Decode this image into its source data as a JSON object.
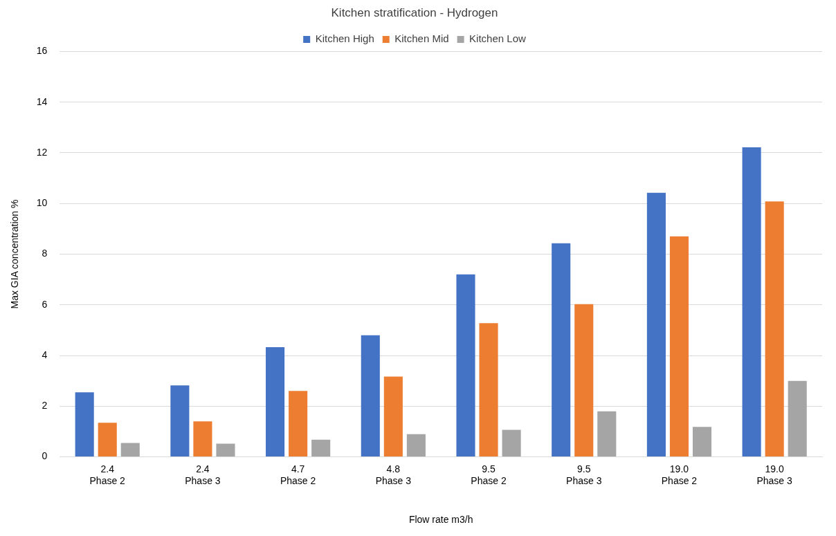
{
  "chart_data": {
    "type": "bar",
    "title": "Kitchen stratification - Hydrogen",
    "xlabel": "Flow rate m3/h",
    "ylabel": "Max GIA concentration %",
    "categories": [
      "2.4\nPhase 2",
      "2.4\nPhase 3",
      "4.7\nPhase 2",
      "4.8\nPhase 3",
      "9.5\nPhase 2",
      "9.5\nPhase 3",
      "19.0\nPhase 2",
      "19.0\nPhase 3"
    ],
    "series": [
      {
        "name": "Kitchen High",
        "color": "#4472c4",
        "values": [
          2.55,
          2.82,
          4.33,
          4.8,
          7.2,
          8.43,
          10.42,
          12.22
        ]
      },
      {
        "name": "Kitchen Mid",
        "color": "#ed7d31",
        "values": [
          1.35,
          1.4,
          2.6,
          3.17,
          5.28,
          6.03,
          8.7,
          10.08
        ]
      },
      {
        "name": "Kitchen Low",
        "color": "#a5a5a5",
        "values": [
          0.55,
          0.52,
          0.68,
          0.9,
          1.07,
          1.8,
          1.18,
          3.0
        ]
      }
    ],
    "ylim": [
      0,
      16
    ],
    "yticks": [
      0,
      2,
      4,
      6,
      8,
      10,
      12,
      14,
      16
    ],
    "grid": "y",
    "legend": "top"
  }
}
